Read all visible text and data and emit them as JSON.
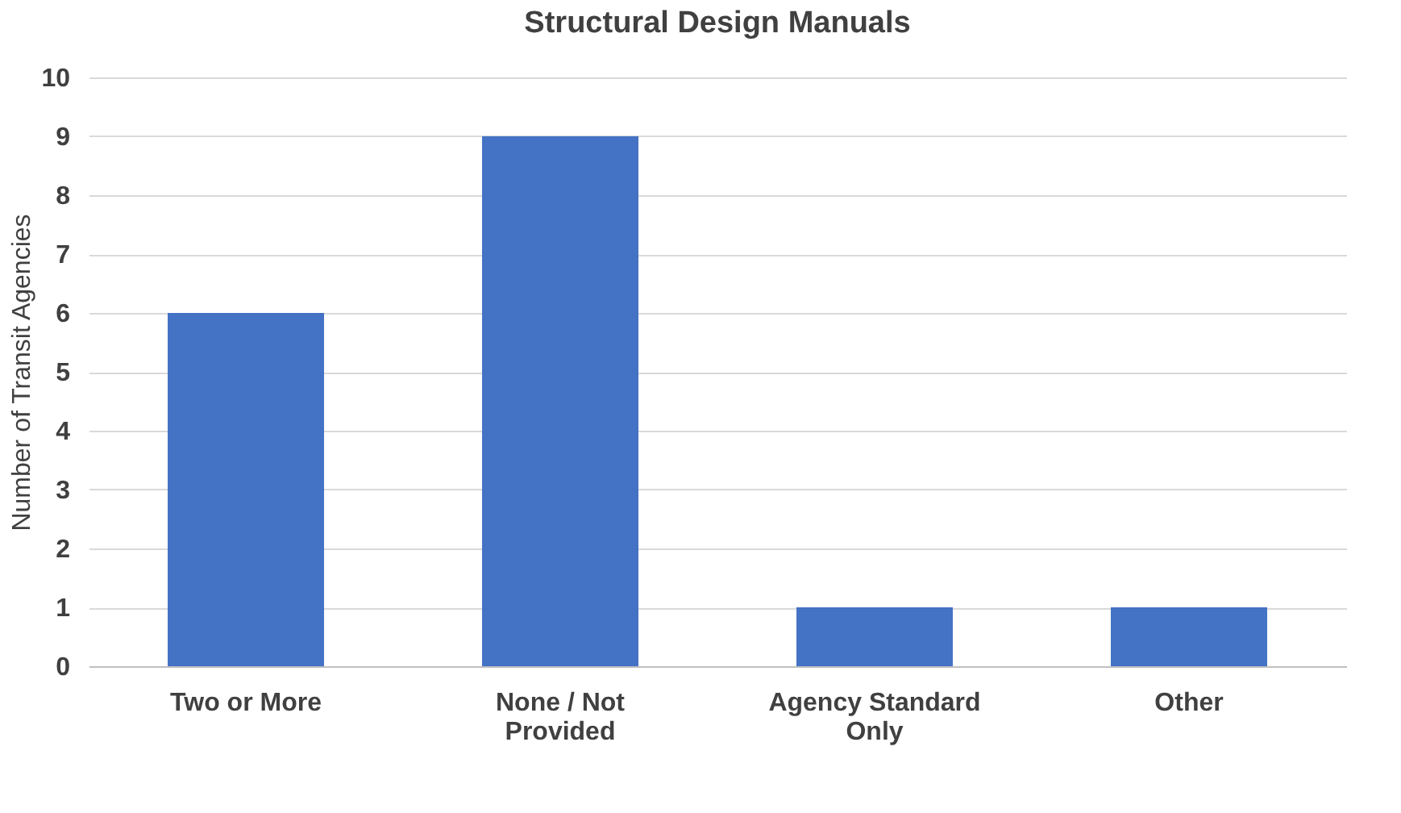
{
  "chart_data": {
    "type": "bar",
    "title": "Structural Design Manuals",
    "ylabel": "Number of Transit Agencies",
    "categories": [
      "Two or More",
      "None / Not Provided",
      "Agency Standard Only",
      "Other"
    ],
    "values": [
      6,
      9,
      1,
      1
    ],
    "color": "#4472c4",
    "ylim": [
      0,
      10
    ],
    "yticks": [
      0,
      1,
      2,
      3,
      4,
      5,
      6,
      7,
      8,
      9,
      10
    ],
    "grid": "y"
  }
}
